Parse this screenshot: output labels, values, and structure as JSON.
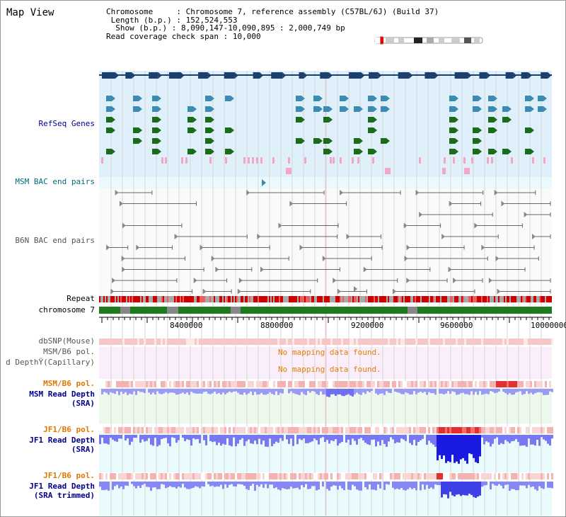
{
  "window": {
    "title": "Map View"
  },
  "info": {
    "chromosome_label": "Chromosome",
    "chromosome_value": "Chromosome 7, reference assembly (C57BL/6J) (Build 37)",
    "length_label": "Length (b.p.)",
    "length_value": "152,524,553",
    "show_label": "Show (b.p.)",
    "show_value": "8,090,147-10,090,895 : 2,000,749 bp",
    "coverage_label": "Read coverage check span",
    "coverage_value": "10,000"
  },
  "tracks": {
    "refseq": "RefSeq Genes",
    "msm_bac": "MSM BAC end pairs",
    "b6n_bac": "B6N BAC end pairs",
    "repeat": "Repeat",
    "chromosome": "chromosome 7",
    "dbsnp": "dbSNP(Mouse)",
    "msm_pol_cap": "MSM/B6 pol.",
    "depth_cap": "d DepthŸ(Capillary)",
    "msm_pol": "MSM/B6 pol.",
    "msm_depth_1": "MSM Read Depth",
    "msm_depth_2": "(SRA)",
    "jf1_pol_a": "JF1/B6 pol.",
    "jf1_depth_1": "JF1 Read Depth",
    "jf1_depth_2": "(SRA)",
    "jf1_pol_b": "JF1/B6 pol.",
    "jf1_trim_1": "JF1 Read Depth",
    "jf1_trim_2": "(SRA trimmed)"
  },
  "messages": {
    "no_data_1": "No mapping data found.",
    "no_data_2": "No mapping data found."
  },
  "axis": {
    "ticks": [
      "8400000",
      "8800000",
      "9200000",
      "9600000",
      "10000000"
    ]
  },
  "colors": {
    "refseq_bg": "#dff0fa",
    "gene_dark": "#1b3f6e",
    "gene_mid": "#3b8bb3",
    "gene_green": "#1a6b1a",
    "gene_pink": "#f4a6c8",
    "repeat_red": "#cc0000",
    "chrom_green": "#1d7a1d",
    "depth_blue": "#6f6ff0",
    "depth_strong": "#1a1ae0",
    "pol_pink": "#f7c7c7"
  }
}
